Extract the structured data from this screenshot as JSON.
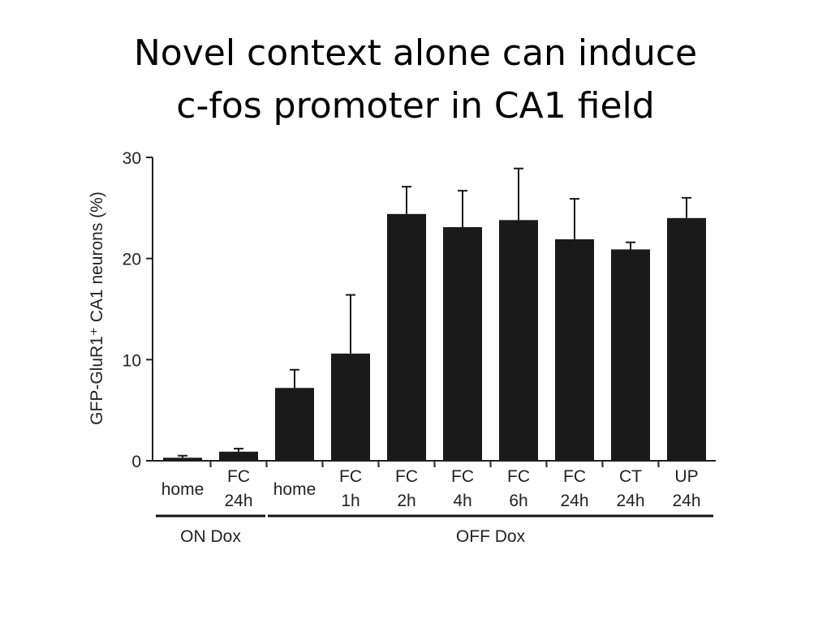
{
  "chart_data": {
    "type": "bar",
    "title": [
      "Novel context alone can induce",
      "c-fos promoter in CA1 field"
    ],
    "y_label": "GFP-GluR1⁺  CA1 neurons (%)",
    "categories": [
      [
        "home"
      ],
      [
        "FC",
        "24h"
      ],
      [
        "home"
      ],
      [
        "FC",
        "1h"
      ],
      [
        "FC",
        "2h"
      ],
      [
        "FC",
        "4h"
      ],
      [
        "FC",
        "6h"
      ],
      [
        "FC",
        "24h"
      ],
      [
        "CT",
        "24h"
      ],
      [
        "UP",
        "24h"
      ]
    ],
    "values": [
      0.3,
      0.9,
      7.2,
      10.6,
      24.4,
      23.1,
      23.8,
      21.9,
      20.9,
      24.0
    ],
    "errors": [
      0.2,
      0.3,
      1.8,
      5.8,
      2.7,
      3.6,
      5.1,
      4.0,
      0.7,
      2.0
    ],
    "color": "#1a1a1a",
    "groups": [
      "ON Dox",
      "OFF Dox"
    ],
    "ylim": [
      0,
      30
    ],
    "yticks": [
      0,
      10,
      20,
      30
    ]
  }
}
